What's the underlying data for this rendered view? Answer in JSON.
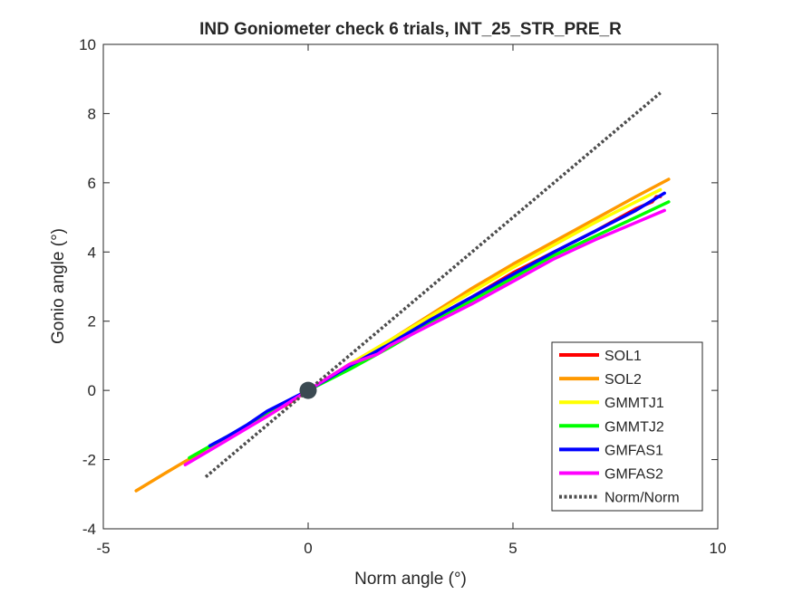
{
  "chart_data": {
    "type": "line",
    "title": "IND Goniometer check 6 trials, INT_25_STR_PRE_R",
    "xlabel": "Norm angle (°)",
    "ylabel": "Gonio angle (°)",
    "xlim": [
      -5,
      10
    ],
    "ylim": [
      -4,
      10
    ],
    "xticks": [
      -5,
      0,
      5,
      10
    ],
    "yticks": [
      -4,
      -2,
      0,
      2,
      4,
      6,
      8,
      10
    ],
    "grid": false,
    "legend_position": "bottom-right",
    "origin_marker": {
      "x": 0,
      "y": 0,
      "color": "#3b4a52"
    },
    "series": [
      {
        "name": "SOL1",
        "color": "#ff0000",
        "dashed": false,
        "x": [
          -2.6,
          -2.0,
          -1.5,
          -1.0,
          -0.5,
          0,
          1.0,
          2.0,
          3.0,
          4.0,
          5.0,
          6.0,
          7.0,
          8.0,
          8.4,
          8.5,
          8.6
        ],
        "y": [
          -1.75,
          -1.4,
          -1.05,
          -0.7,
          -0.4,
          0,
          0.65,
          1.35,
          2.05,
          2.7,
          3.4,
          4.0,
          4.6,
          5.25,
          5.45,
          5.6,
          5.6
        ]
      },
      {
        "name": "SOL2",
        "color": "#ff9900",
        "dashed": false,
        "x": [
          -4.2,
          -3.5,
          -3.0,
          -2.0,
          -1.0,
          0,
          1.0,
          2.0,
          3.0,
          4.0,
          5.0,
          6.0,
          7.0,
          8.0,
          8.8
        ],
        "y": [
          -2.9,
          -2.4,
          -2.05,
          -1.4,
          -0.75,
          0,
          0.75,
          1.45,
          2.2,
          2.95,
          3.65,
          4.3,
          4.95,
          5.6,
          6.1
        ]
      },
      {
        "name": "GMMTJ1",
        "color": "#ffff00",
        "dashed": false,
        "x": [
          -2.5,
          -2.0,
          -1.0,
          0,
          1.0,
          2.0,
          3.0,
          4.0,
          5.0,
          6.0,
          7.0,
          8.0,
          8.6
        ],
        "y": [
          -1.7,
          -1.35,
          -0.7,
          0,
          0.75,
          1.45,
          2.15,
          2.85,
          3.55,
          4.2,
          4.85,
          5.45,
          5.8
        ]
      },
      {
        "name": "GMMTJ2",
        "color": "#00ff00",
        "dashed": false,
        "x": [
          -2.9,
          -2.0,
          -1.0,
          0,
          1.0,
          2.0,
          3.0,
          4.0,
          5.0,
          6.0,
          7.0,
          8.0,
          8.8
        ],
        "y": [
          -1.95,
          -1.35,
          -0.7,
          0,
          0.6,
          1.25,
          1.95,
          2.6,
          3.25,
          3.9,
          4.45,
          5.0,
          5.45
        ]
      },
      {
        "name": "GMFAS1",
        "color": "#0000ff",
        "dashed": false,
        "x": [
          -2.4,
          -2.0,
          -1.5,
          -1.0,
          -0.5,
          0,
          1.0,
          2.0,
          3.0,
          4.0,
          5.0,
          6.0,
          7.0,
          8.0,
          8.7
        ],
        "y": [
          -1.6,
          -1.35,
          -1.0,
          -0.6,
          -0.3,
          0,
          0.7,
          1.35,
          2.05,
          2.7,
          3.35,
          4.0,
          4.6,
          5.2,
          5.7
        ]
      },
      {
        "name": "GMFAS2",
        "color": "#ff00ff",
        "dashed": false,
        "x": [
          -3.0,
          -2.0,
          -1.0,
          0,
          1.0,
          1.7,
          2.0,
          3.0,
          4.0,
          5.0,
          6.0,
          7.0,
          8.0,
          8.7
        ],
        "y": [
          -2.15,
          -1.45,
          -0.75,
          0,
          0.75,
          1.05,
          1.3,
          1.9,
          2.5,
          3.15,
          3.8,
          4.35,
          4.85,
          5.2
        ]
      },
      {
        "name": "Norm/Norm",
        "color": "#4d4d4d",
        "dashed": true,
        "x": [
          -2.5,
          8.6
        ],
        "y": [
          -2.5,
          8.6
        ]
      }
    ]
  }
}
